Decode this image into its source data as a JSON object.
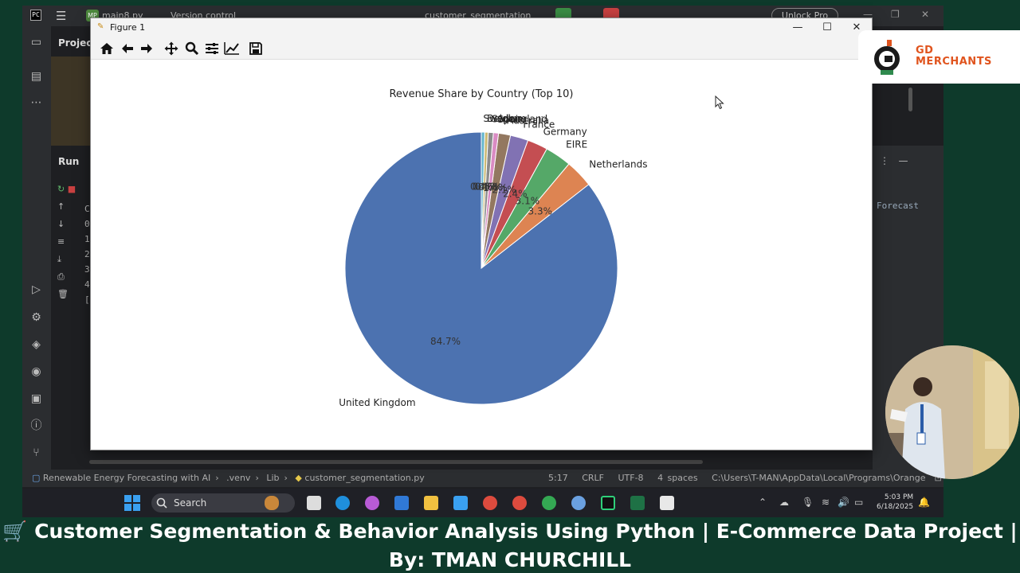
{
  "ide": {
    "logo": "PC",
    "project_badge": "MP",
    "project_name": "main8.py",
    "version_control": "Version control",
    "run_config": "customer_segmentation",
    "unlock_label": "Unlock Pro",
    "project_tab": "Project",
    "run_tab": "Run",
    "run_lines": [
      "C",
      "",
      "0",
      "1",
      "2",
      "3",
      "4",
      "",
      "["
    ],
    "right_text": "Forecast",
    "status_left": [
      "Renewable Energy Forecasting with AI",
      ".venv",
      "Lib",
      "customer_segmentation.py"
    ],
    "status_right": {
      "cursor": "5:17",
      "line_ending": "CRLF",
      "encoding": "UTF-8",
      "indent": "4 spaces",
      "path": "C:\\Users\\T-MAN\\AppData\\Local\\Programs\\Orange"
    }
  },
  "figure_window": {
    "title": "Figure 1"
  },
  "chart_data": {
    "type": "pie",
    "title": "Revenue Share by Country (Top 10)",
    "labels": [
      "United Kingdom",
      "Netherlands",
      "EIRE",
      "Germany",
      "France",
      "Australia",
      "Spain",
      "Switzerland",
      "Belgium",
      "Sweden"
    ],
    "values": [
      84.7,
      3.3,
      3.1,
      2.4,
      2.1,
      1.4,
      0.6,
      0.6,
      0.4,
      0.4
    ],
    "pct_labels": [
      "84.7%",
      "3.3%",
      "3.1%",
      "2.4%",
      "2.1%",
      "1.4%",
      "0.6%",
      "0.6%",
      "0.4%",
      "0.4%"
    ],
    "colors": [
      "#4c72b0",
      "#dd8452",
      "#55a868",
      "#c44e52",
      "#8172b3",
      "#937860",
      "#da8bc3",
      "#8c8c8c",
      "#ccb974",
      "#64b5cd"
    ],
    "start_angle_deg": 90,
    "direction": "counterclockwise"
  },
  "brand": {
    "line1": "GD",
    "line2": "MERCHANTS",
    "color": "#e0541e"
  },
  "taskbar": {
    "search_label": "Search",
    "time": "5:03 PM",
    "date": "6/18/2025"
  },
  "caption": {
    "line1": "🛒 Customer Segmentation & Behavior Analysis Using Python | E-Commerce Data Project |",
    "line2": "By: TMAN CHURCHILL"
  }
}
